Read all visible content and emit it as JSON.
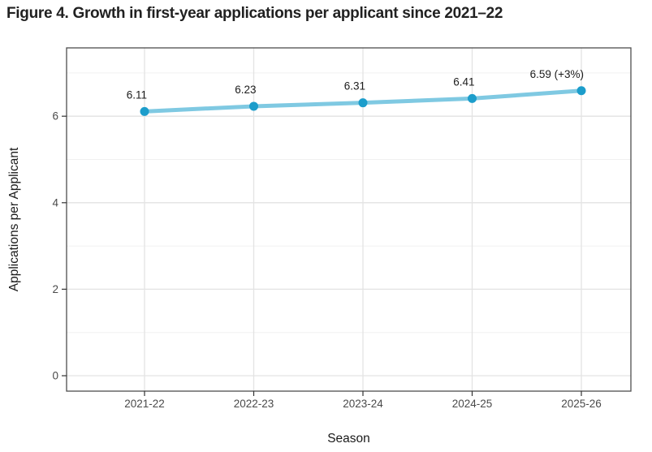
{
  "figure_title": "Figure 4. Growth in first-year applications per applicant since 2021–22",
  "chart_data": {
    "type": "line",
    "categories": [
      "2021-22",
      "2022-23",
      "2023-24",
      "2024-25",
      "2025-26"
    ],
    "values": [
      6.11,
      6.23,
      6.31,
      6.41,
      6.59
    ],
    "point_labels": [
      "6.11",
      "6.23",
      "6.31",
      "6.41",
      "6.59 (+3%)"
    ],
    "title": "Figure 4. Growth in first-year applications per applicant since 2021–22",
    "xlabel": "Season",
    "ylabel": "Applications per Applicant",
    "yticks": [
      0,
      2,
      4,
      6
    ],
    "minor_yticks": [
      1,
      3,
      5,
      7
    ],
    "ylim": [
      -0.36,
      7.58
    ],
    "grid": true,
    "legend": "none",
    "colors": {
      "line": "#7FC9E2",
      "point": "#1C9DCB",
      "major_grid": "#e3e3e3",
      "minor_grid": "#f0f0f0",
      "panel_border": "#4d4d4d",
      "tick_label": "#4a4a4a",
      "axis_title": "#1a1a1a",
      "data_label": "#1c1c1c"
    }
  }
}
